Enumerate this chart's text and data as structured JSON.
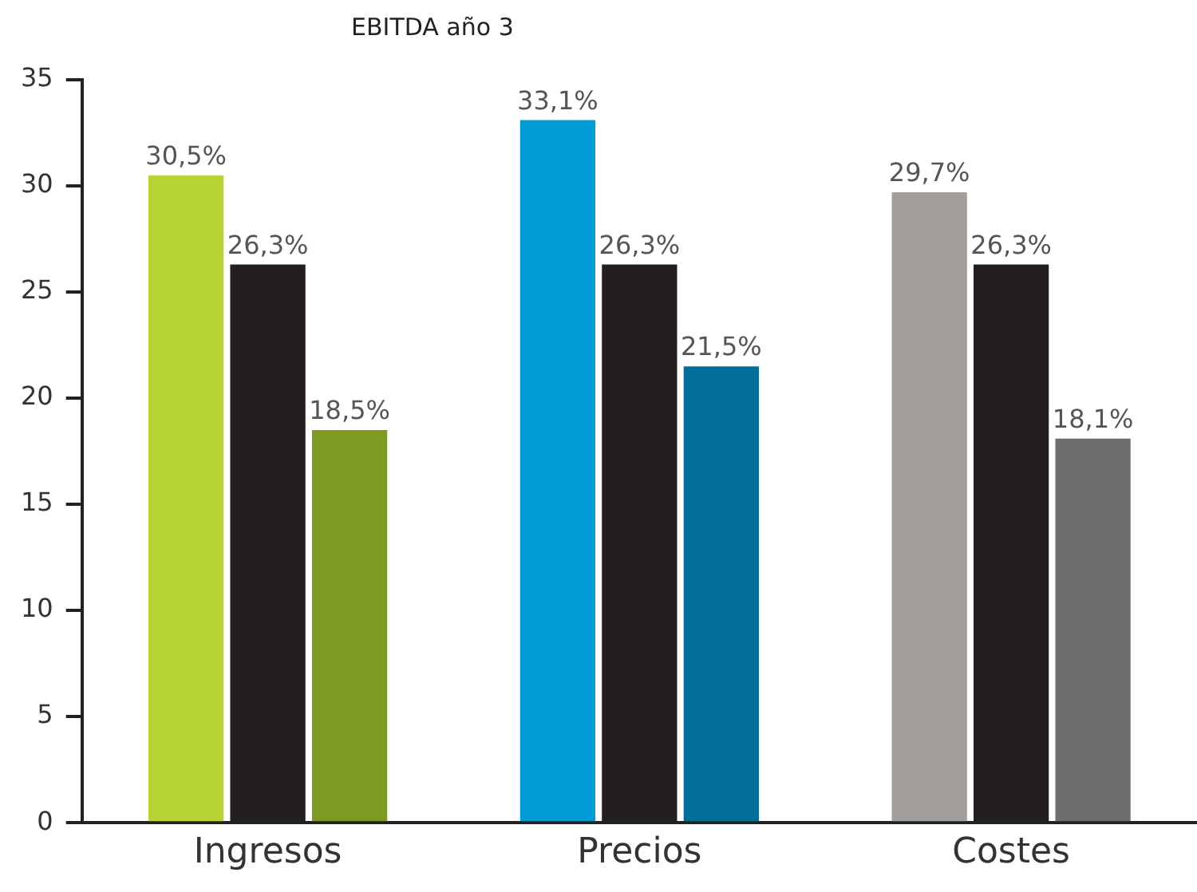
{
  "chart_data": {
    "type": "bar",
    "title": "EBITDA año 3",
    "categories": [
      "Ingresos",
      "Precios",
      "Costes"
    ],
    "series": [
      {
        "colors": [
          "#b5d334",
          "#009bd4",
          "#a39e9c"
        ],
        "values": [
          30.5,
          33.1,
          29.7
        ],
        "value_labels": [
          "30,5%",
          "33,1%",
          "29,7%"
        ]
      },
      {
        "colors": [
          "#231f20",
          "#231f20",
          "#231f20"
        ],
        "values": [
          26.3,
          26.3,
          26.3
        ],
        "value_labels": [
          "26,3%",
          "26,3%",
          "26,3%"
        ]
      },
      {
        "colors": [
          "#7e9a22",
          "#006e98",
          "#6d6d70"
        ],
        "values": [
          18.5,
          21.5,
          18.1
        ],
        "value_labels": [
          "18,5%",
          "21,5%",
          "18,1%"
        ]
      }
    ],
    "ylim": [
      0,
      35
    ],
    "yticks": [
      0,
      5,
      10,
      15,
      20,
      25,
      30,
      35
    ],
    "grid": false,
    "legend": false
  }
}
